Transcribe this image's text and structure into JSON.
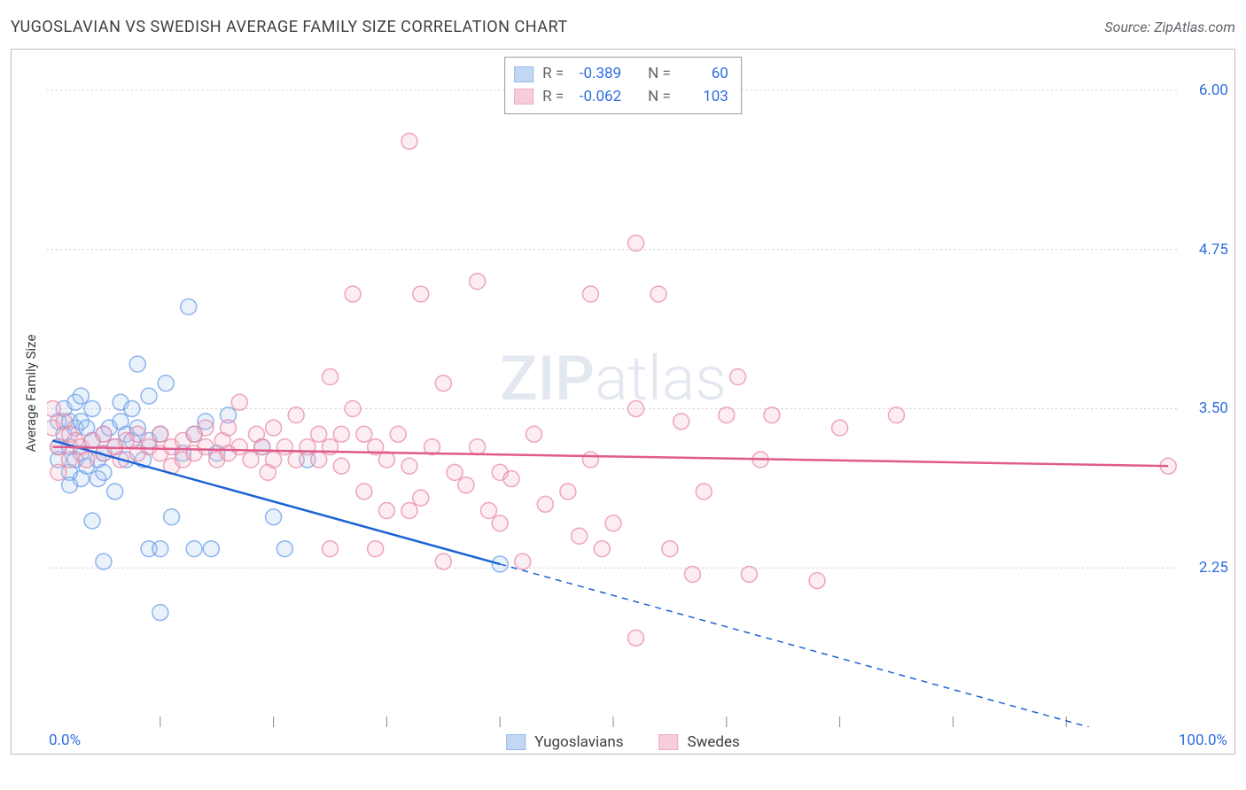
{
  "title": "YUGOSLAVIAN VS SWEDISH AVERAGE FAMILY SIZE CORRELATION CHART",
  "source": "Source: ZipAtlas.com",
  "ylabel": "Average Family Size",
  "watermark_text": "ZIPatlas",
  "chart": {
    "type": "scatter",
    "xlim": [
      0,
      100
    ],
    "ylim": [
      1.0,
      6.25
    ],
    "y_ticks": [
      2.25,
      3.5,
      4.75,
      6.0
    ],
    "x_minor_ticks": [
      10,
      20,
      30,
      40,
      50,
      60,
      70,
      80,
      90
    ],
    "x_start_label": "0.0%",
    "x_end_label": "100.0%",
    "background_color": "#ffffff",
    "grid_color": "#cccccc",
    "border_color": "#bdbdbd",
    "marker_radius": 9,
    "marker_fill_opacity": 0.25,
    "marker_stroke_opacity": 0.75,
    "marker_stroke_width": 1.5,
    "trendline_width": 2.5
  },
  "series": [
    {
      "key": "yugoslavians",
      "label": "Yugoslavians",
      "color_stroke": "#6a9ee8",
      "color_fill": "#a8c7f0",
      "trend_color": "#1a63d4",
      "R": "-0.389",
      "N": "60",
      "trend_start": {
        "x": 0.5,
        "y": 3.25
      },
      "trend_end_solid": {
        "x": 40,
        "y": 2.28
      },
      "trend_end_dashed": {
        "x": 92,
        "y": 1.0
      },
      "points": [
        {
          "x": 1,
          "y": 3.4
        },
        {
          "x": 1,
          "y": 3.2
        },
        {
          "x": 1,
          "y": 3.1
        },
        {
          "x": 1.5,
          "y": 3.5
        },
        {
          "x": 1.5,
          "y": 3.3
        },
        {
          "x": 2,
          "y": 3.2
        },
        {
          "x": 2,
          "y": 3.4
        },
        {
          "x": 2,
          "y": 3.0
        },
        {
          "x": 2,
          "y": 2.9
        },
        {
          "x": 2.5,
          "y": 3.55
        },
        {
          "x": 2.5,
          "y": 3.35
        },
        {
          "x": 2.5,
          "y": 3.1
        },
        {
          "x": 3,
          "y": 3.6
        },
        {
          "x": 3,
          "y": 3.4
        },
        {
          "x": 3,
          "y": 3.15
        },
        {
          "x": 3,
          "y": 2.95
        },
        {
          "x": 3.5,
          "y": 3.35
        },
        {
          "x": 3.5,
          "y": 3.05
        },
        {
          "x": 4,
          "y": 3.5
        },
        {
          "x": 4,
          "y": 3.25
        },
        {
          "x": 4,
          "y": 2.62
        },
        {
          "x": 4.5,
          "y": 3.1
        },
        {
          "x": 4.5,
          "y": 2.95
        },
        {
          "x": 5,
          "y": 3.3
        },
        {
          "x": 5,
          "y": 3.15
        },
        {
          "x": 5,
          "y": 3.0
        },
        {
          "x": 5,
          "y": 2.3
        },
        {
          "x": 5.5,
          "y": 3.35
        },
        {
          "x": 6,
          "y": 3.2
        },
        {
          "x": 6,
          "y": 2.85
        },
        {
          "x": 6.5,
          "y": 3.4
        },
        {
          "x": 6.5,
          "y": 3.55
        },
        {
          "x": 7,
          "y": 3.1
        },
        {
          "x": 7,
          "y": 3.3
        },
        {
          "x": 7.5,
          "y": 3.5
        },
        {
          "x": 7.5,
          "y": 3.25
        },
        {
          "x": 8,
          "y": 3.85
        },
        {
          "x": 8,
          "y": 3.35
        },
        {
          "x": 8.5,
          "y": 3.1
        },
        {
          "x": 9,
          "y": 3.6
        },
        {
          "x": 9,
          "y": 3.25
        },
        {
          "x": 9,
          "y": 2.4
        },
        {
          "x": 10,
          "y": 3.3
        },
        {
          "x": 10,
          "y": 2.4
        },
        {
          "x": 10,
          "y": 1.9
        },
        {
          "x": 10.5,
          "y": 3.7
        },
        {
          "x": 11,
          "y": 2.65
        },
        {
          "x": 12,
          "y": 3.15
        },
        {
          "x": 12.5,
          "y": 4.3
        },
        {
          "x": 13,
          "y": 3.3
        },
        {
          "x": 13,
          "y": 2.4
        },
        {
          "x": 14,
          "y": 3.4
        },
        {
          "x": 14.5,
          "y": 2.4
        },
        {
          "x": 15,
          "y": 3.15
        },
        {
          "x": 16,
          "y": 3.45
        },
        {
          "x": 19,
          "y": 3.2
        },
        {
          "x": 20,
          "y": 2.65
        },
        {
          "x": 21,
          "y": 2.4
        },
        {
          "x": 23,
          "y": 3.1
        },
        {
          "x": 40,
          "y": 2.28
        }
      ]
    },
    {
      "key": "swedes",
      "label": "Swedes",
      "color_stroke": "#e988a6",
      "color_fill": "#f4b9cc",
      "trend_color": "#e05a8a",
      "R": "-0.062",
      "N": "103",
      "trend_start": {
        "x": 0.5,
        "y": 3.2
      },
      "trend_end_solid": {
        "x": 99,
        "y": 3.05
      },
      "trend_end_dashed": null,
      "points": [
        {
          "x": 0.5,
          "y": 3.5
        },
        {
          "x": 0.5,
          "y": 3.35
        },
        {
          "x": 1,
          "y": 3.2
        },
        {
          "x": 1,
          "y": 3.0
        },
        {
          "x": 1.5,
          "y": 3.4
        },
        {
          "x": 2,
          "y": 3.1
        },
        {
          "x": 2,
          "y": 3.3
        },
        {
          "x": 2.5,
          "y": 3.25
        },
        {
          "x": 3,
          "y": 3.2
        },
        {
          "x": 3.5,
          "y": 3.1
        },
        {
          "x": 4,
          "y": 3.25
        },
        {
          "x": 5,
          "y": 3.15
        },
        {
          "x": 5,
          "y": 3.3
        },
        {
          "x": 6,
          "y": 3.2
        },
        {
          "x": 6.5,
          "y": 3.1
        },
        {
          "x": 7,
          "y": 3.25
        },
        {
          "x": 8,
          "y": 3.3
        },
        {
          "x": 8,
          "y": 3.15
        },
        {
          "x": 9,
          "y": 3.2
        },
        {
          "x": 10,
          "y": 3.3
        },
        {
          "x": 10,
          "y": 3.15
        },
        {
          "x": 11,
          "y": 3.2
        },
        {
          "x": 11,
          "y": 3.05
        },
        {
          "x": 12,
          "y": 3.25
        },
        {
          "x": 12,
          "y": 3.1
        },
        {
          "x": 13,
          "y": 3.3
        },
        {
          "x": 13,
          "y": 3.15
        },
        {
          "x": 14,
          "y": 3.2
        },
        {
          "x": 14,
          "y": 3.35
        },
        {
          "x": 15,
          "y": 3.1
        },
        {
          "x": 15.5,
          "y": 3.25
        },
        {
          "x": 16,
          "y": 3.15
        },
        {
          "x": 16,
          "y": 3.35
        },
        {
          "x": 17,
          "y": 3.55
        },
        {
          "x": 17,
          "y": 3.2
        },
        {
          "x": 18,
          "y": 3.1
        },
        {
          "x": 18.5,
          "y": 3.3
        },
        {
          "x": 19,
          "y": 3.2
        },
        {
          "x": 19.5,
          "y": 3.0
        },
        {
          "x": 20,
          "y": 3.35
        },
        {
          "x": 20,
          "y": 3.1
        },
        {
          "x": 21,
          "y": 3.2
        },
        {
          "x": 22,
          "y": 3.45
        },
        {
          "x": 22,
          "y": 3.1
        },
        {
          "x": 23,
          "y": 3.2
        },
        {
          "x": 24,
          "y": 3.3
        },
        {
          "x": 24,
          "y": 3.1
        },
        {
          "x": 25,
          "y": 3.75
        },
        {
          "x": 25,
          "y": 3.2
        },
        {
          "x": 25,
          "y": 2.4
        },
        {
          "x": 26,
          "y": 3.3
        },
        {
          "x": 26,
          "y": 3.05
        },
        {
          "x": 27,
          "y": 3.5
        },
        {
          "x": 27,
          "y": 4.4
        },
        {
          "x": 28,
          "y": 3.3
        },
        {
          "x": 28,
          "y": 2.85
        },
        {
          "x": 29,
          "y": 3.2
        },
        {
          "x": 29,
          "y": 2.4
        },
        {
          "x": 30,
          "y": 3.1
        },
        {
          "x": 30,
          "y": 2.7
        },
        {
          "x": 31,
          "y": 3.3
        },
        {
          "x": 32,
          "y": 5.6
        },
        {
          "x": 32,
          "y": 3.05
        },
        {
          "x": 32,
          "y": 2.7
        },
        {
          "x": 33,
          "y": 4.4
        },
        {
          "x": 33,
          "y": 2.8
        },
        {
          "x": 34,
          "y": 3.2
        },
        {
          "x": 35,
          "y": 2.3
        },
        {
          "x": 35,
          "y": 3.7
        },
        {
          "x": 36,
          "y": 3.0
        },
        {
          "x": 37,
          "y": 2.9
        },
        {
          "x": 38,
          "y": 3.2
        },
        {
          "x": 38,
          "y": 4.5
        },
        {
          "x": 39,
          "y": 2.7
        },
        {
          "x": 40,
          "y": 3.0
        },
        {
          "x": 40,
          "y": 2.6
        },
        {
          "x": 41,
          "y": 2.95
        },
        {
          "x": 42,
          "y": 2.3
        },
        {
          "x": 43,
          "y": 3.3
        },
        {
          "x": 44,
          "y": 2.75
        },
        {
          "x": 46,
          "y": 2.85
        },
        {
          "x": 47,
          "y": 2.5
        },
        {
          "x": 48,
          "y": 4.4
        },
        {
          "x": 48,
          "y": 3.1
        },
        {
          "x": 49,
          "y": 2.4
        },
        {
          "x": 50,
          "y": 2.6
        },
        {
          "x": 52,
          "y": 4.8
        },
        {
          "x": 52,
          "y": 3.5
        },
        {
          "x": 52,
          "y": 1.7
        },
        {
          "x": 54,
          "y": 4.4
        },
        {
          "x": 55,
          "y": 2.4
        },
        {
          "x": 56,
          "y": 3.4
        },
        {
          "x": 57,
          "y": 2.2
        },
        {
          "x": 58,
          "y": 2.85
        },
        {
          "x": 60,
          "y": 3.45
        },
        {
          "x": 61,
          "y": 3.75
        },
        {
          "x": 62,
          "y": 2.2
        },
        {
          "x": 63,
          "y": 3.1
        },
        {
          "x": 64,
          "y": 3.45
        },
        {
          "x": 68,
          "y": 2.15
        },
        {
          "x": 70,
          "y": 3.35
        },
        {
          "x": 75,
          "y": 3.45
        },
        {
          "x": 99,
          "y": 3.05
        }
      ]
    }
  ],
  "legend_items": [
    {
      "key": "yugoslavians",
      "label": "Yugoslavians"
    },
    {
      "key": "swedes",
      "label": "Swedes"
    }
  ]
}
